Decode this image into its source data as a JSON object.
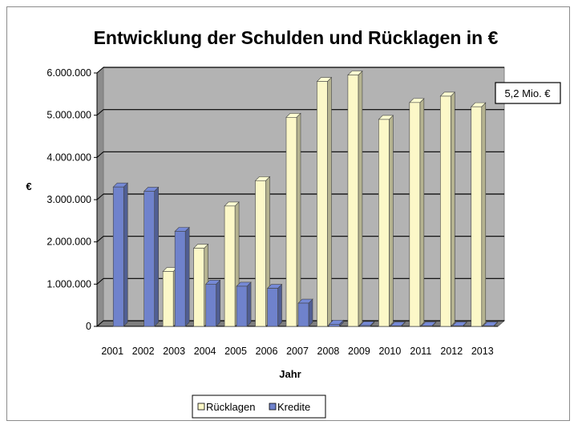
{
  "chart_data": {
    "type": "bar",
    "title": "Entwicklung der Schulden und Rücklagen in €",
    "xlabel": "Jahr",
    "ylabel": "€",
    "categories": [
      "2001",
      "2002",
      "2003",
      "2004",
      "2005",
      "2006",
      "2007",
      "2008",
      "2009",
      "2010",
      "2011",
      "2012",
      "2013"
    ],
    "series": [
      {
        "name": "Rücklagen",
        "color": "#fcf8c8",
        "values": [
          0,
          0,
          1300000,
          1850000,
          2850000,
          3450000,
          4950000,
          5800000,
          5950000,
          4900000,
          5300000,
          5450000,
          5200000
        ]
      },
      {
        "name": "Kredite",
        "color": "#6f82cc",
        "values": [
          3300000,
          3200000,
          2250000,
          1000000,
          950000,
          900000,
          550000,
          50000,
          20000,
          10000,
          10000,
          10000,
          10000
        ]
      }
    ],
    "ylim": [
      0,
      6000000
    ],
    "yticks": [
      0,
      1000000,
      2000000,
      3000000,
      4000000,
      5000000,
      6000000
    ],
    "ytick_labels": [
      "0",
      "1.000.000",
      "2.000.000",
      "3.000.000",
      "4.000.000",
      "5.000.000",
      "6.000.000"
    ],
    "grid": true,
    "legend_position": "bottom",
    "annotation": "5,2 Mio. €"
  }
}
